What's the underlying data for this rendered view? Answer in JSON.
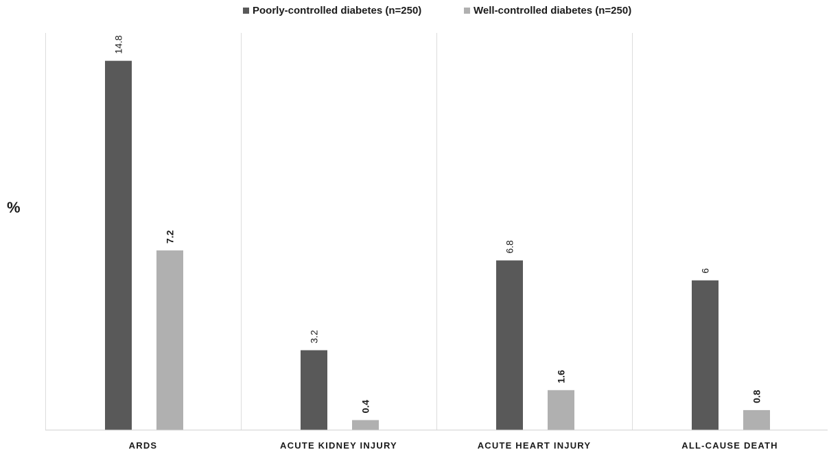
{
  "chart_data": {
    "type": "bar",
    "ylabel": "%",
    "xlabel": "",
    "ylim": [
      0,
      16
    ],
    "grid": false,
    "legend_position": "top-center",
    "categories": [
      "ARDS",
      "ACUTE KIDNEY INJURY",
      "ACUTE HEART INJURY",
      "ALL-CAUSE DEATH"
    ],
    "series": [
      {
        "name": "Poorly-controlled diabetes (n=250)",
        "color": "#595959",
        "label_weight": "normal",
        "values": [
          14.8,
          3.2,
          6.8,
          6
        ],
        "labels": [
          "14.8",
          "3.2",
          "6.8",
          "6"
        ]
      },
      {
        "name": "Well-controlled diabetes (n=250)",
        "color": "#b0b0b0",
        "label_weight": "bold",
        "values": [
          7.2,
          0.4,
          1.6,
          0.8
        ],
        "labels": [
          "7.2",
          "0.4",
          "1.6",
          "0.8"
        ]
      }
    ]
  }
}
